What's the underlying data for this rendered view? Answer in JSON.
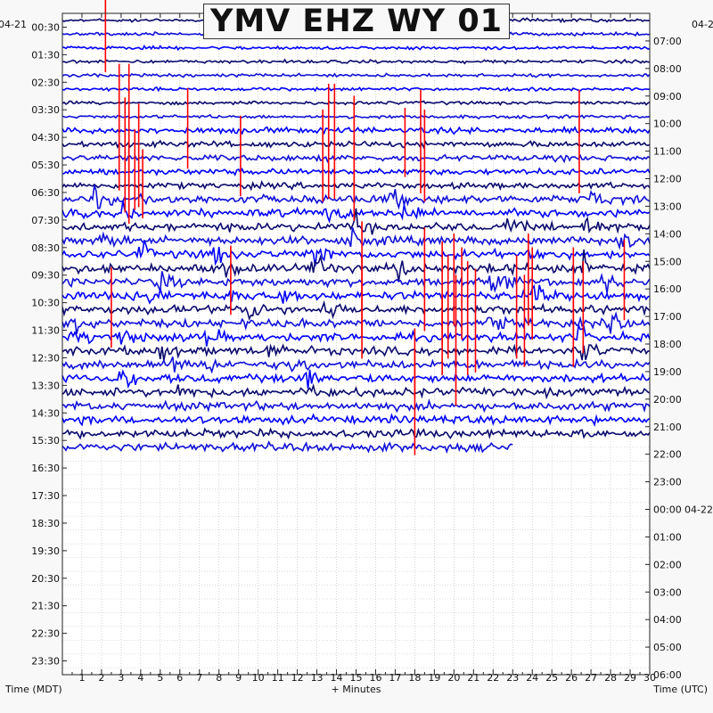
{
  "chart_data": {
    "type": "helicorder",
    "title": "YMV EHZ WY 01",
    "left_date": "04-21",
    "right_start_date": "04-2",
    "right_next_date": "04-22",
    "left_times": [
      "00:30",
      "01:30",
      "02:30",
      "03:30",
      "04:30",
      "05:30",
      "06:30",
      "07:30",
      "08:30",
      "09:30",
      "10:30",
      "11:30",
      "12:30",
      "13:30",
      "14:30",
      "15:30",
      "16:30",
      "17:30",
      "18:30",
      "19:30",
      "20:30",
      "21:30",
      "22:30",
      "23:30"
    ],
    "right_times": [
      "07:00",
      "08:00",
      "09:00",
      "10:00",
      "11:00",
      "12:00",
      "13:00",
      "14:00",
      "15:00",
      "16:00",
      "17:00",
      "18:00",
      "19:00",
      "20:00",
      "21:00",
      "22:00",
      "23:00",
      "00:00",
      "01:00",
      "02:00",
      "03:00",
      "04:00",
      "05:00",
      "06:00"
    ],
    "x_ticks": [
      "1",
      "2",
      "3",
      "4",
      "5",
      "6",
      "7",
      "8",
      "9",
      "10",
      "11",
      "12",
      "13",
      "14",
      "15",
      "16",
      "17",
      "18",
      "19",
      "20",
      "21",
      "22",
      "23",
      "24",
      "25",
      "26",
      "27",
      "28",
      "29",
      "30"
    ],
    "xlabel": "+ Minutes",
    "left_axis_label": "Time (MDT)",
    "right_axis_label": "Time (UTC)",
    "x_range_minutes": [
      0,
      30
    ],
    "traces_per_hour": 2,
    "trace_colors": [
      "#0a0a6e",
      "#1010d8",
      "#0000ff"
    ],
    "trigger_color": "#ff0000",
    "data_end": {
      "time": "15:30",
      "minute": 23
    },
    "trigger_marks": [
      {
        "row": 1,
        "minute": 2.2,
        "amp": 1.4
      },
      {
        "row": 8,
        "minute": 2.9,
        "amp": 2.2
      },
      {
        "row": 8,
        "minute": 3.4,
        "amp": 2.2
      },
      {
        "row": 8,
        "minute": 6.4,
        "amp": 1.4
      },
      {
        "row": 9,
        "minute": 13.6,
        "amp": 2.0
      },
      {
        "row": 9,
        "minute": 13.9,
        "amp": 2.0
      },
      {
        "row": 9,
        "minute": 14.9,
        "amp": 1.6
      },
      {
        "row": 9,
        "minute": 17.5,
        "amp": 1.2
      },
      {
        "row": 9,
        "minute": 18.3,
        "amp": 1.8
      },
      {
        "row": 9,
        "minute": 26.4,
        "amp": 1.8
      },
      {
        "row": 10,
        "minute": 3.2,
        "amp": 2.0
      },
      {
        "row": 10,
        "minute": 3.9,
        "amp": 1.8
      },
      {
        "row": 10,
        "minute": 9.1,
        "amp": 1.4
      },
      {
        "row": 10,
        "minute": 13.3,
        "amp": 1.6
      },
      {
        "row": 10,
        "minute": 18.5,
        "amp": 1.6
      },
      {
        "row": 11,
        "minute": 3.7,
        "amp": 1.4
      },
      {
        "row": 11,
        "minute": 14.9,
        "amp": 1.8
      },
      {
        "row": 12,
        "minute": 3.4,
        "amp": 1.4
      },
      {
        "row": 12,
        "minute": 4.1,
        "amp": 1.2
      },
      {
        "row": 19,
        "minute": 8.6,
        "amp": 1.2
      },
      {
        "row": 19,
        "minute": 15.3,
        "amp": 2.0
      },
      {
        "row": 19,
        "minute": 18.5,
        "amp": 1.8
      },
      {
        "row": 19,
        "minute": 20.0,
        "amp": 1.6
      },
      {
        "row": 19,
        "minute": 23.8,
        "amp": 1.6
      },
      {
        "row": 19,
        "minute": 28.7,
        "amp": 1.4
      },
      {
        "row": 20,
        "minute": 19.4,
        "amp": 1.8
      },
      {
        "row": 20,
        "minute": 20.4,
        "amp": 1.6
      },
      {
        "row": 20,
        "minute": 24.0,
        "amp": 1.6
      },
      {
        "row": 20,
        "minute": 26.1,
        "amp": 1.6
      },
      {
        "row": 21,
        "minute": 2.5,
        "amp": 1.4
      },
      {
        "row": 21,
        "minute": 15.3,
        "amp": 1.8
      },
      {
        "row": 21,
        "minute": 19.7,
        "amp": 1.8
      },
      {
        "row": 21,
        "minute": 20.7,
        "amp": 1.6
      },
      {
        "row": 21,
        "minute": 23.2,
        "amp": 1.8
      },
      {
        "row": 21,
        "minute": 26.6,
        "amp": 1.6
      },
      {
        "row": 22,
        "minute": 20.1,
        "amp": 1.6
      },
      {
        "row": 22,
        "minute": 21.1,
        "amp": 1.8
      },
      {
        "row": 22,
        "minute": 23.6,
        "amp": 1.6
      },
      {
        "row": 22,
        "minute": 26.1,
        "amp": 1.6
      },
      {
        "row": 23,
        "minute": 19.4,
        "amp": 1.4
      },
      {
        "row": 23,
        "minute": 20.7,
        "amp": 1.4
      },
      {
        "row": 25,
        "minute": 18.0,
        "amp": 1.2
      },
      {
        "row": 26,
        "minute": 20.1,
        "amp": 1.0
      },
      {
        "row": 28,
        "minute": 18.0,
        "amp": 1.8
      }
    ],
    "quake_bursts": [
      {
        "row": 13,
        "minute": 1.6,
        "amp": 0.8
      },
      {
        "row": 13,
        "minute": 16.8,
        "amp": 0.8
      },
      {
        "row": 13,
        "minute": 27.0,
        "amp": 0.7
      },
      {
        "row": 14,
        "minute": 3.0,
        "amp": 0.9
      },
      {
        "row": 14,
        "minute": 13.5,
        "amp": 0.7
      },
      {
        "row": 14,
        "minute": 17.4,
        "amp": 0.8
      },
      {
        "row": 15,
        "minute": 14.9,
        "amp": 1.2
      },
      {
        "row": 15,
        "minute": 26.6,
        "amp": 0.9
      },
      {
        "row": 15,
        "minute": 22.6,
        "amp": 0.6
      },
      {
        "row": 16,
        "minute": 14.9,
        "amp": 1.2
      },
      {
        "row": 16,
        "minute": 2.0,
        "amp": 0.8
      },
      {
        "row": 16,
        "minute": 28.5,
        "amp": 0.7
      },
      {
        "row": 17,
        "minute": 12.8,
        "amp": 1.4
      },
      {
        "row": 17,
        "minute": 7.7,
        "amp": 1.0
      },
      {
        "row": 17,
        "minute": 4.0,
        "amp": 0.9
      },
      {
        "row": 18,
        "minute": 12.8,
        "amp": 1.3
      },
      {
        "row": 18,
        "minute": 17.2,
        "amp": 1.0
      },
      {
        "row": 18,
        "minute": 21.8,
        "amp": 1.0
      },
      {
        "row": 18,
        "minute": 26.6,
        "amp": 0.9
      },
      {
        "row": 18,
        "minute": 8.3,
        "amp": 0.8
      },
      {
        "row": 19,
        "minute": 5.0,
        "amp": 1.1
      },
      {
        "row": 19,
        "minute": 22.0,
        "amp": 1.0
      },
      {
        "row": 19,
        "minute": 27.6,
        "amp": 0.9
      },
      {
        "row": 20,
        "minute": 4.5,
        "amp": 1.0
      },
      {
        "row": 20,
        "minute": 8.7,
        "amp": 0.9
      },
      {
        "row": 20,
        "minute": 11.3,
        "amp": 0.9
      },
      {
        "row": 20,
        "minute": 24.1,
        "amp": 0.9
      },
      {
        "row": 21,
        "minute": 9.6,
        "amp": 1.1
      },
      {
        "row": 21,
        "minute": 13.4,
        "amp": 0.8
      },
      {
        "row": 22,
        "minute": 0.8,
        "amp": 1.2
      },
      {
        "row": 22,
        "minute": 21.9,
        "amp": 1.0
      },
      {
        "row": 22,
        "minute": 28.1,
        "amp": 0.9
      },
      {
        "row": 23,
        "minute": 0.6,
        "amp": 1.0
      },
      {
        "row": 23,
        "minute": 3.0,
        "amp": 0.9
      },
      {
        "row": 23,
        "minute": 7.3,
        "amp": 0.8
      },
      {
        "row": 23,
        "minute": 26.4,
        "amp": 0.9
      },
      {
        "row": 24,
        "minute": 5.0,
        "amp": 1.1
      },
      {
        "row": 24,
        "minute": 10.5,
        "amp": 0.8
      },
      {
        "row": 24,
        "minute": 26.6,
        "amp": 1.0
      },
      {
        "row": 25,
        "minute": 5.6,
        "amp": 0.9
      },
      {
        "row": 25,
        "minute": 11.7,
        "amp": 1.0
      },
      {
        "row": 25,
        "minute": 7.5,
        "amp": 0.8
      },
      {
        "row": 26,
        "minute": 3.0,
        "amp": 1.0
      },
      {
        "row": 26,
        "minute": 12.4,
        "amp": 0.9
      },
      {
        "row": 27,
        "minute": 5.8,
        "amp": 0.8
      },
      {
        "row": 27,
        "minute": 12.8,
        "amp": 1.0
      }
    ]
  }
}
